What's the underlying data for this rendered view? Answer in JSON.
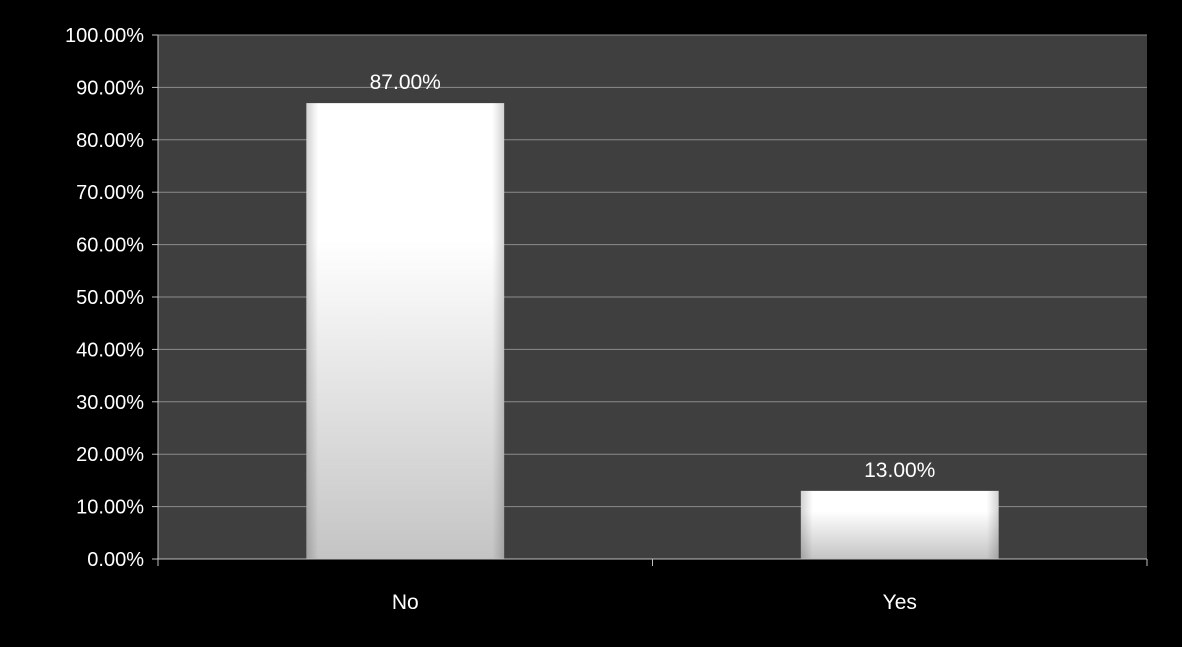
{
  "chart_data": {
    "type": "bar",
    "categories": [
      "No",
      "Yes"
    ],
    "values": [
      87.0,
      13.0
    ],
    "data_labels": [
      "87.00%",
      "13.00%"
    ],
    "y_tick_labels": [
      "0.00%",
      "10.00%",
      "20.00%",
      "30.00%",
      "40.00%",
      "50.00%",
      "60.00%",
      "70.00%",
      "80.00%",
      "90.00%",
      "100.00%"
    ],
    "ylim": [
      0,
      100
    ],
    "y_unit": "%",
    "grid": true,
    "legend": "none",
    "colors": {
      "background": "#000000",
      "plot_area": "#3f3f3f",
      "gridline": "#8c8c8c",
      "axis": "#bfbfbf",
      "bar_light": "#ffffff",
      "bar_dark": "#c4c4c4",
      "text": "#ffffff"
    }
  }
}
